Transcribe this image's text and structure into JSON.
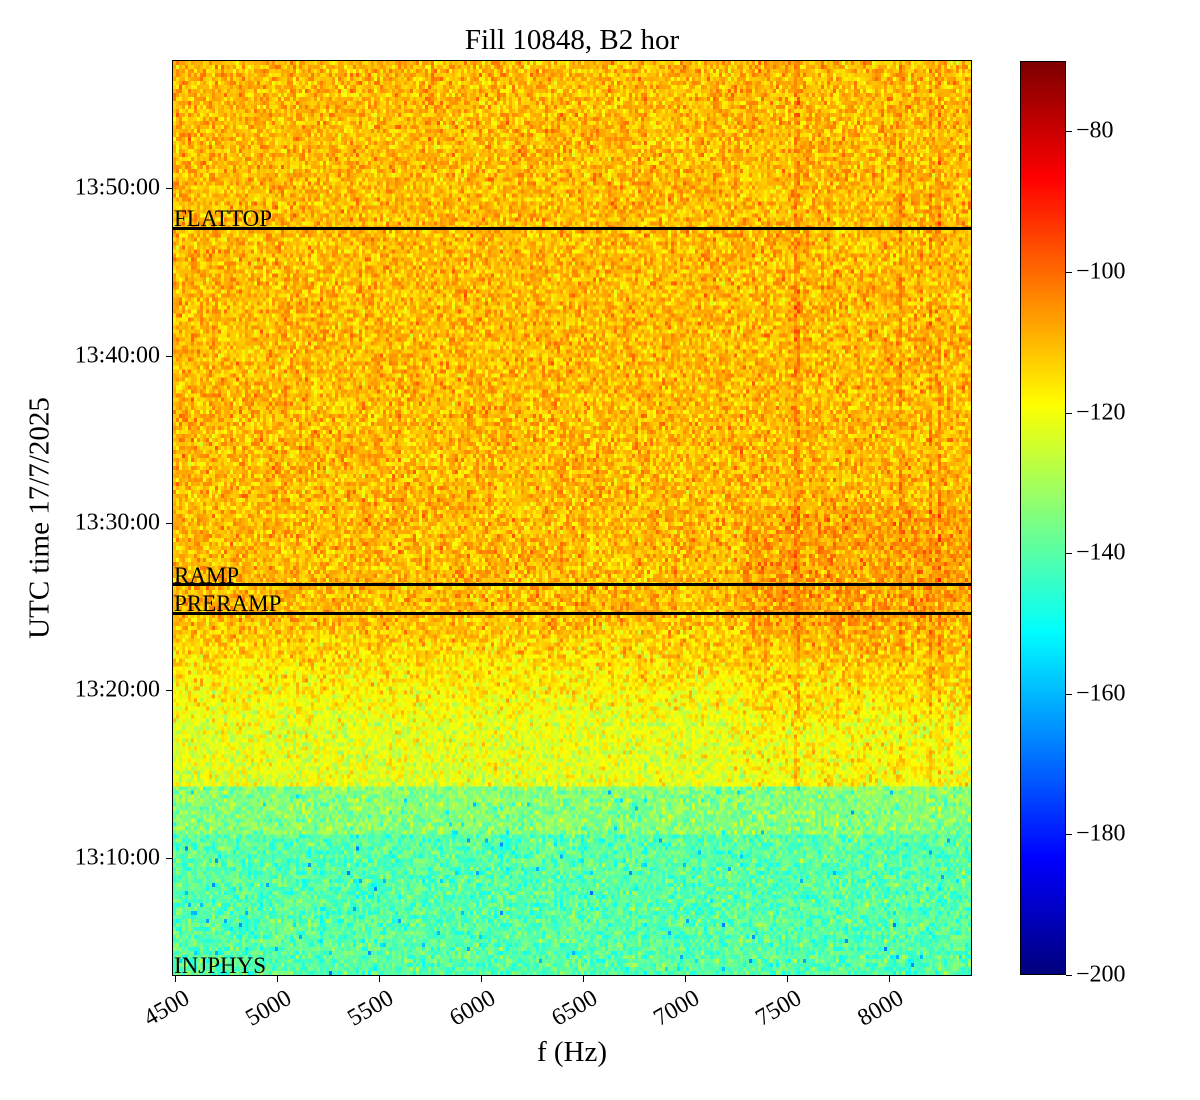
{
  "chart_data": {
    "type": "heatmap",
    "title": "Fill 10848, B2 hor",
    "xlabel": "f (Hz)",
    "ylabel": "UTC time 17/7/2025",
    "xlim": [
      4490,
      8400
    ],
    "ylim_minutes_after_1300": [
      3.0,
      57.6
    ],
    "xticks": [
      4500,
      5000,
      5500,
      6000,
      6500,
      7000,
      7500,
      8000
    ],
    "xtick_labels": [
      "4500",
      "5000",
      "5500",
      "6000",
      "6500",
      "7000",
      "7500",
      "8000"
    ],
    "yticks_minutes_after_1300": [
      10,
      20,
      30,
      40,
      50
    ],
    "ytick_labels": [
      "13:10:00",
      "13:20:00",
      "13:30:00",
      "13:40:00",
      "13:50:00"
    ],
    "colormap": "jet",
    "colorbar": {
      "range": [
        -200,
        -70
      ],
      "ticks": [
        -80,
        -100,
        -120,
        -140,
        -160,
        -180,
        -200
      ],
      "tick_labels": [
        "−80",
        "−100",
        "−120",
        "−140",
        "−160",
        "−180",
        "−200"
      ]
    },
    "regions": [
      {
        "t_start": 3.0,
        "t_end": 11.5,
        "mean_db": -140
      },
      {
        "t_start": 11.5,
        "t_end": 14.3,
        "mean_db": -134
      },
      {
        "t_start": 14.3,
        "t_end": 18.0,
        "mean_db": -122
      },
      {
        "t_start": 18.0,
        "t_end": 24.0,
        "mean_db": -115
      },
      {
        "t_start": 24.0,
        "t_end": 57.6,
        "mean_db": -110
      }
    ],
    "spectral_lines_hz": [
      7550,
      8050,
      8200,
      8250
    ],
    "phase_markers": [
      {
        "label": "FLATTOP",
        "t_minutes_after_1300": 47.6
      },
      {
        "label": "RAMP",
        "t_minutes_after_1300": 26.3
      },
      {
        "label": "PRERAMP",
        "t_minutes_after_1300": 24.6
      },
      {
        "label": "INJPHYS",
        "t_minutes_after_1300": 3.0
      }
    ]
  }
}
